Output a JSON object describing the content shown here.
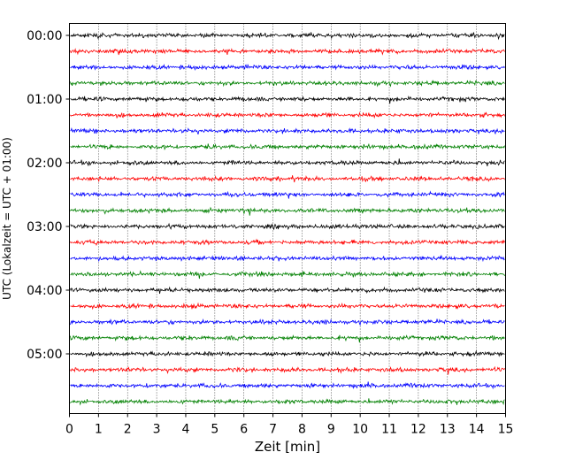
{
  "chart_data": {
    "type": "line",
    "title": "",
    "xlabel": "Zeit  [min]",
    "ylabel": "UTC (Lokalzeit = UTC + 01:00)",
    "xlim": [
      0,
      15
    ],
    "x_ticks": [
      "0",
      "1",
      "2",
      "3",
      "4",
      "5",
      "6",
      "7",
      "8",
      "9",
      "10",
      "11",
      "12",
      "13",
      "14",
      "15"
    ],
    "y_ticks": [
      "00:00",
      "01:00",
      "02:00",
      "03:00",
      "04:00",
      "05:00"
    ],
    "grid": "vertical dotted",
    "trace_interval_minutes": 15,
    "trace_count": 24,
    "color_cycle": [
      "#000000",
      "#ff0000",
      "#0000ff",
      "#008000"
    ]
  }
}
